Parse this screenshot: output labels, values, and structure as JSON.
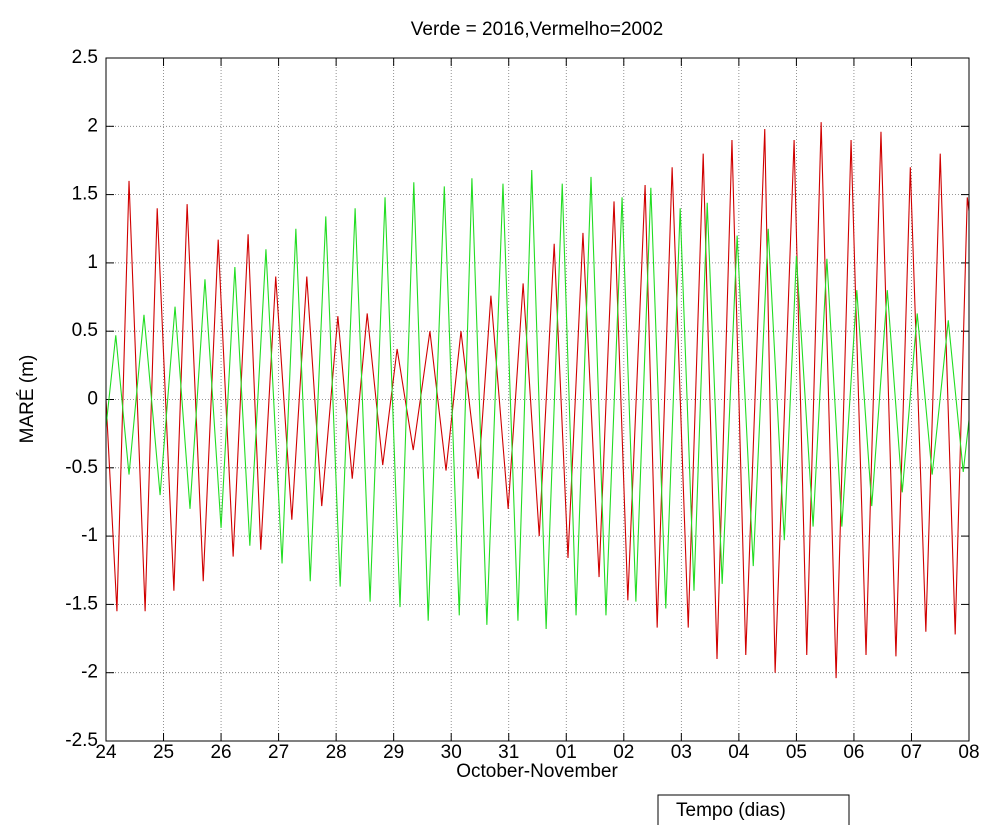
{
  "chart_data": {
    "type": "line",
    "title": "Verde = 2016,Vermelho=2002",
    "xlabel": "October-November",
    "ylabel": "MARÉ (m)",
    "annotation": "Tempo (dias)",
    "grid": true,
    "xlim": [
      0,
      15
    ],
    "ylim": [
      -2.5,
      2.5
    ],
    "xticks": [
      {
        "value": 0,
        "label": "24"
      },
      {
        "value": 1,
        "label": "25"
      },
      {
        "value": 2,
        "label": "26"
      },
      {
        "value": 3,
        "label": "27"
      },
      {
        "value": 4,
        "label": "28"
      },
      {
        "value": 5,
        "label": "29"
      },
      {
        "value": 6,
        "label": "30"
      },
      {
        "value": 7,
        "label": "31"
      },
      {
        "value": 8,
        "label": "01"
      },
      {
        "value": 9,
        "label": "02"
      },
      {
        "value": 10,
        "label": "03"
      },
      {
        "value": 11,
        "label": "04"
      },
      {
        "value": 12,
        "label": "05"
      },
      {
        "value": 13,
        "label": "06"
      },
      {
        "value": 14,
        "label": "07"
      },
      {
        "value": 15,
        "label": "08"
      }
    ],
    "yticks": [
      -2.5,
      -2,
      -1.5,
      -1,
      -0.5,
      0,
      0.5,
      1,
      1.5,
      2,
      2.5
    ],
    "series": [
      {
        "color": "#d00000",
        "x": [
          0,
          0.19,
          0.4,
          0.68,
          0.89,
          1.18,
          1.41,
          1.69,
          1.95,
          2.21,
          2.47,
          2.69,
          2.95,
          3.23,
          3.49,
          3.75,
          4.03,
          4.28,
          4.54,
          4.81,
          5.06,
          5.34,
          5.63,
          5.91,
          6.17,
          6.47,
          6.69,
          6.99,
          7.25,
          7.53,
          7.79,
          8.03,
          8.29,
          8.57,
          8.83,
          9.07,
          9.37,
          9.58,
          9.84,
          10.12,
          10.38,
          10.62,
          10.88,
          11.12,
          11.45,
          11.63,
          11.96,
          12.18,
          12.43,
          12.69,
          12.95,
          13.21,
          13.47,
          13.73,
          13.98,
          14.25,
          14.5,
          14.76,
          14.97,
          15.0
        ],
        "values": [
          0,
          -1.55,
          1.6,
          -1.55,
          1.4,
          -1.4,
          1.43,
          -1.33,
          1.17,
          -1.15,
          1.21,
          -1.1,
          0.9,
          -0.88,
          0.9,
          -0.78,
          0.61,
          -0.58,
          0.63,
          -0.48,
          0.37,
          -0.37,
          0.5,
          -0.52,
          0.5,
          -0.58,
          0.76,
          -0.8,
          0.85,
          -1.0,
          1.14,
          -1.16,
          1.22,
          -1.3,
          1.45,
          -1.47,
          1.57,
          -1.67,
          1.7,
          -1.67,
          1.8,
          -1.9,
          1.9,
          -1.87,
          1.98,
          -2.0,
          1.9,
          -1.87,
          2.03,
          -2.04,
          1.9,
          -1.87,
          1.96,
          -1.88,
          1.7,
          -1.7,
          1.8,
          -1.72,
          1.48,
          1.38
        ]
      },
      {
        "color": "#22dd22",
        "x": [
          0,
          0.17,
          0.4,
          0.66,
          0.94,
          1.2,
          1.46,
          1.72,
          2.0,
          2.24,
          2.5,
          2.78,
          3.06,
          3.3,
          3.55,
          3.82,
          4.07,
          4.33,
          4.59,
          4.85,
          5.11,
          5.35,
          5.6,
          5.88,
          6.14,
          6.36,
          6.62,
          6.9,
          7.16,
          7.4,
          7.65,
          7.93,
          8.17,
          8.43,
          8.69,
          8.97,
          9.21,
          9.47,
          9.73,
          9.98,
          10.22,
          10.45,
          10.71,
          10.97,
          11.25,
          11.51,
          11.79,
          12.0,
          12.29,
          12.53,
          12.79,
          13.05,
          13.31,
          13.58,
          13.84,
          14.1,
          14.36,
          14.64,
          14.9,
          15.0
        ],
        "values": [
          -0.2,
          0.47,
          -0.55,
          0.62,
          -0.7,
          0.68,
          -0.8,
          0.88,
          -0.94,
          0.97,
          -1.07,
          1.1,
          -1.2,
          1.25,
          -1.33,
          1.34,
          -1.37,
          1.4,
          -1.48,
          1.48,
          -1.52,
          1.59,
          -1.62,
          1.56,
          -1.58,
          1.62,
          -1.65,
          1.58,
          -1.62,
          1.68,
          -1.68,
          1.58,
          -1.58,
          1.63,
          -1.58,
          1.48,
          -1.48,
          1.55,
          -1.53,
          1.4,
          -1.4,
          1.44,
          -1.35,
          1.2,
          -1.22,
          1.25,
          -1.03,
          1.05,
          -0.93,
          1.03,
          -0.93,
          0.8,
          -0.78,
          0.8,
          -0.68,
          0.63,
          -0.55,
          0.58,
          -0.53,
          -0.15
        ]
      }
    ]
  }
}
